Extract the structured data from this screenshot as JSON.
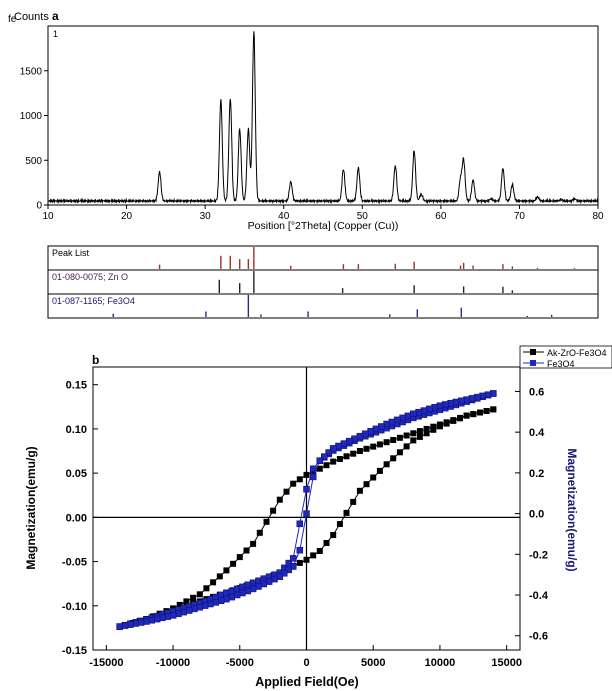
{
  "chart_data": [
    {
      "type": "line",
      "panel_label": "a",
      "corner_label": "fe",
      "ylabel": "Counts",
      "inset_label": "1",
      "xlabel": "Position [°2Theta] (Copper (Cu))",
      "xlim": [
        10,
        80
      ],
      "ylim": [
        0,
        2000
      ],
      "x_ticks": [
        "10",
        "20",
        "30",
        "40",
        "50",
        "60",
        "70",
        "80"
      ],
      "y_ticks": [
        "0",
        "500",
        "1000",
        "1500"
      ],
      "x_tick_values": [
        10,
        20,
        30,
        40,
        50,
        60,
        70,
        80
      ],
      "y_tick_values": [
        0,
        500,
        1000,
        1500
      ],
      "baseline": 45,
      "peaks": [
        {
          "x": 24.2,
          "y": 370
        },
        {
          "x": 32.0,
          "y": 1180
        },
        {
          "x": 33.2,
          "y": 1190
        },
        {
          "x": 34.4,
          "y": 850
        },
        {
          "x": 35.5,
          "y": 850
        },
        {
          "x": 36.2,
          "y": 1940
        },
        {
          "x": 40.9,
          "y": 260
        },
        {
          "x": 47.6,
          "y": 400
        },
        {
          "x": 49.5,
          "y": 420
        },
        {
          "x": 54.2,
          "y": 440
        },
        {
          "x": 56.6,
          "y": 610
        },
        {
          "x": 57.5,
          "y": 120
        },
        {
          "x": 62.5,
          "y": 280
        },
        {
          "x": 62.9,
          "y": 500
        },
        {
          "x": 64.1,
          "y": 280
        },
        {
          "x": 66.4,
          "y": 70
        },
        {
          "x": 67.9,
          "y": 410
        },
        {
          "x": 69.1,
          "y": 230
        },
        {
          "x": 72.3,
          "y": 90
        },
        {
          "x": 75.3,
          "y": 60
        },
        {
          "x": 77.0,
          "y": 70
        }
      ],
      "peak_list": {
        "rows": [
          {
            "label": "Peak List",
            "color": "#a0302a",
            "lines": [
              {
                "x": 24.2,
                "h": 0.2
              },
              {
                "x": 32.0,
                "h": 0.6
              },
              {
                "x": 33.2,
                "h": 0.6
              },
              {
                "x": 34.4,
                "h": 0.45
              },
              {
                "x": 35.5,
                "h": 0.45
              },
              {
                "x": 36.2,
                "h": 1.0
              },
              {
                "x": 40.9,
                "h": 0.15
              },
              {
                "x": 47.6,
                "h": 0.22
              },
              {
                "x": 49.5,
                "h": 0.22
              },
              {
                "x": 54.2,
                "h": 0.24
              },
              {
                "x": 56.6,
                "h": 0.33
              },
              {
                "x": 62.5,
                "h": 0.16
              },
              {
                "x": 62.9,
                "h": 0.28
              },
              {
                "x": 64.1,
                "h": 0.16
              },
              {
                "x": 67.9,
                "h": 0.22
              },
              {
                "x": 69.1,
                "h": 0.12
              },
              {
                "x": 72.3,
                "h": 0.05
              },
              {
                "x": 77.0,
                "h": 0.04
              }
            ]
          },
          {
            "label": "01-080-0075; Zn O",
            "color": "#222222",
            "lines": [
              {
                "x": 31.8,
                "h": 0.6
              },
              {
                "x": 34.4,
                "h": 0.45
              },
              {
                "x": 36.2,
                "h": 1.0
              },
              {
                "x": 47.5,
                "h": 0.22
              },
              {
                "x": 56.6,
                "h": 0.35
              },
              {
                "x": 62.9,
                "h": 0.3
              },
              {
                "x": 67.9,
                "h": 0.28
              },
              {
                "x": 69.1,
                "h": 0.12
              }
            ]
          },
          {
            "label": "01-087-1165; Fe3O4",
            "color": "#2a2a8a",
            "lines": [
              {
                "x": 18.3,
                "h": 0.15
              },
              {
                "x": 30.1,
                "h": 0.25
              },
              {
                "x": 35.5,
                "h": 1.0
              },
              {
                "x": 37.1,
                "h": 0.12
              },
              {
                "x": 43.1,
                "h": 0.25
              },
              {
                "x": 53.5,
                "h": 0.12
              },
              {
                "x": 57.0,
                "h": 0.35
              },
              {
                "x": 62.6,
                "h": 0.42
              },
              {
                "x": 71.0,
                "h": 0.05
              },
              {
                "x": 74.1,
                "h": 0.1
              }
            ]
          }
        ]
      }
    },
    {
      "type": "scatter",
      "panel_label": "b",
      "xlabel": "Applied Field(Oe)",
      "ylabel": "Magnetization(emu/g)",
      "y2label": "Magnetization(emu/g)",
      "xlim": [
        -16000,
        16000
      ],
      "ylim": [
        -0.15,
        0.17
      ],
      "y2lim": [
        -0.67,
        0.72
      ],
      "x_ticks": [
        "-15000",
        "-10000",
        "-5000",
        "0",
        "5000",
        "10000",
        "15000"
      ],
      "y_ticks": [
        "-0.15",
        "-0.10",
        "-0.05",
        "0.00",
        "0.05",
        "0.10",
        "0.15"
      ],
      "y2_ticks": [
        "-0.6",
        "-0.4",
        "-0.2",
        "0.0",
        "0.2",
        "0.4",
        "0.6"
      ],
      "x_tick_values": [
        -15000,
        -10000,
        -5000,
        0,
        5000,
        10000,
        15000
      ],
      "y_tick_values": [
        -0.15,
        -0.1,
        -0.05,
        0,
        0.05,
        0.1,
        0.15
      ],
      "y2_tick_values": [
        -0.6,
        -0.4,
        -0.2,
        0,
        0.2,
        0.4,
        0.6
      ],
      "legend": [
        "Ak-ZrO-Fe3O4",
        "Fe3O4"
      ],
      "legend_position": "top-right",
      "series": [
        {
          "name": "Ak-ZrO-Fe3O4",
          "axis": "left",
          "color": "#000000",
          "marker": "square",
          "branch_upper": [
            [
              -14000,
              -0.124
            ],
            [
              -12000,
              -0.115
            ],
            [
              -10000,
              -0.103
            ],
            [
              -8000,
              -0.087
            ],
            [
              -6000,
              -0.06
            ],
            [
              -4000,
              -0.03
            ],
            [
              -3000,
              -0.005
            ],
            [
              -2000,
              0.02
            ],
            [
              -1000,
              0.038
            ],
            [
              0,
              0.048
            ],
            [
              1000,
              0.055
            ],
            [
              2000,
              0.063
            ],
            [
              4000,
              0.075
            ],
            [
              6000,
              0.085
            ],
            [
              8000,
              0.095
            ],
            [
              10000,
              0.105
            ],
            [
              12000,
              0.115
            ],
            [
              14000,
              0.122
            ]
          ],
          "branch_lower": [
            [
              14000,
              0.122
            ],
            [
              12000,
              0.115
            ],
            [
              10000,
              0.103
            ],
            [
              8000,
              0.087
            ],
            [
              6000,
              0.06
            ],
            [
              4000,
              0.03
            ],
            [
              3000,
              0.005
            ],
            [
              2000,
              -0.02
            ],
            [
              1000,
              -0.038
            ],
            [
              0,
              -0.048
            ],
            [
              -1000,
              -0.055
            ],
            [
              -2000,
              -0.063
            ],
            [
              -4000,
              -0.075
            ],
            [
              -6000,
              -0.085
            ],
            [
              -8000,
              -0.095
            ],
            [
              -10000,
              -0.105
            ],
            [
              -12000,
              -0.115
            ],
            [
              -14000,
              -0.124
            ]
          ]
        },
        {
          "name": "Fe3O4",
          "axis": "right",
          "color": "#1f28b8",
          "marker": "square",
          "branch_upper": [
            [
              -14000,
              -0.555
            ],
            [
              -12000,
              -0.52
            ],
            [
              -10000,
              -0.48
            ],
            [
              -8000,
              -0.44
            ],
            [
              -6000,
              -0.39
            ],
            [
              -4000,
              -0.34
            ],
            [
              -2000,
              -0.29
            ],
            [
              -1000,
              -0.22
            ],
            [
              -500,
              -0.05
            ],
            [
              0,
              0.12
            ],
            [
              500,
              0.22
            ],
            [
              1000,
              0.26
            ],
            [
              2000,
              0.31
            ],
            [
              4000,
              0.37
            ],
            [
              6000,
              0.42
            ],
            [
              8000,
              0.47
            ],
            [
              10000,
              0.51
            ],
            [
              12000,
              0.55
            ],
            [
              14000,
              0.59
            ]
          ],
          "branch_lower": [
            [
              14000,
              0.59
            ],
            [
              12000,
              0.56
            ],
            [
              10000,
              0.53
            ],
            [
              8000,
              0.49
            ],
            [
              6000,
              0.44
            ],
            [
              4000,
              0.38
            ],
            [
              2000,
              0.32
            ],
            [
              1000,
              0.26
            ],
            [
              500,
              0.18
            ],
            [
              0,
              0.0
            ],
            [
              -500,
              -0.18
            ],
            [
              -1000,
              -0.26
            ],
            [
              -2000,
              -0.31
            ],
            [
              -4000,
              -0.37
            ],
            [
              -6000,
              -0.42
            ],
            [
              -8000,
              -0.46
            ],
            [
              -10000,
              -0.5
            ],
            [
              -12000,
              -0.53
            ],
            [
              -14000,
              -0.555
            ]
          ]
        }
      ]
    }
  ]
}
